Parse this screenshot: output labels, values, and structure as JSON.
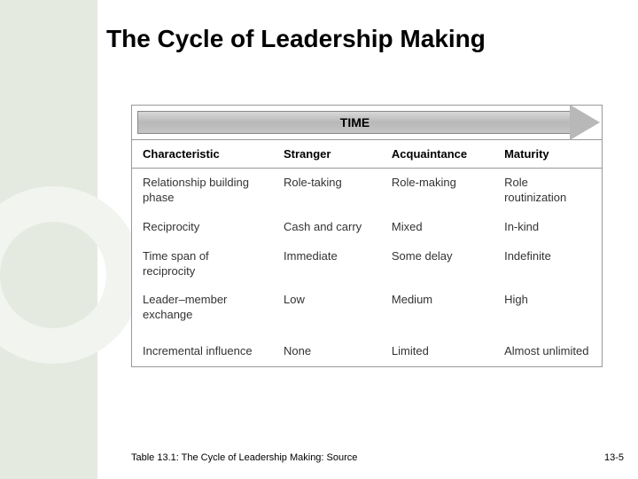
{
  "title": "The Cycle of Leadership Making",
  "arrow_label": "TIME",
  "table": {
    "headers": [
      "Characteristic",
      "Stranger",
      "Acquaintance",
      "Maturity"
    ],
    "rows": [
      [
        "Relationship building phase",
        "Role-taking",
        "Role-making",
        "Role routinization"
      ],
      [
        "Reciprocity",
        "Cash and carry",
        "Mixed",
        "In-kind"
      ],
      [
        "Time span of reciprocity",
        "Immediate",
        "Some delay",
        "Indefinite"
      ],
      [
        "Leader–member exchange",
        "Low",
        "Medium",
        "High"
      ],
      [
        "Incremental influence",
        "None",
        "Limited",
        "Almost unlimited"
      ]
    ]
  },
  "caption": "Table 13.1: The Cycle of Leadership Making: Source",
  "page_number": "13-5",
  "colors": {
    "left_band": "#e5eae0",
    "ring": "#f2f4ef",
    "arrow_fill": "#b8b8b8",
    "border": "#999999"
  }
}
